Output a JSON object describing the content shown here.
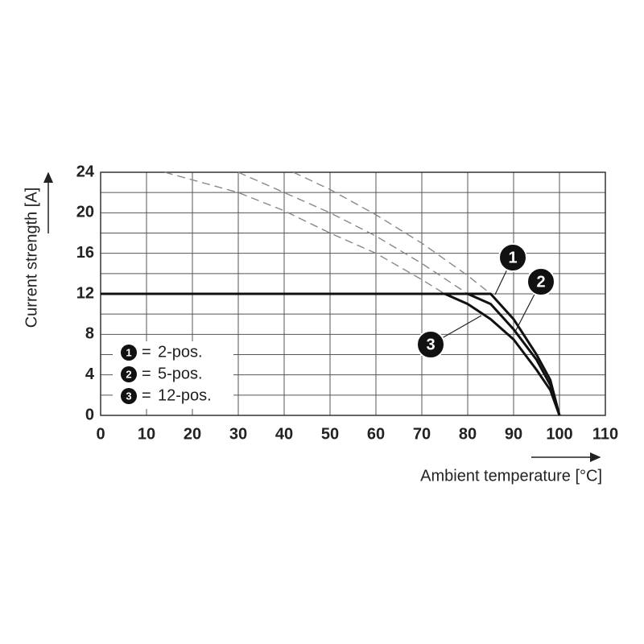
{
  "chart_data": {
    "type": "line",
    "y_label": "Current strength [A]",
    "x_label": "Ambient temperature [°C]",
    "xlim": [
      0,
      110
    ],
    "xticks": [
      0,
      10,
      20,
      30,
      40,
      50,
      60,
      70,
      80,
      90,
      100,
      110
    ],
    "ylim": [
      0,
      24
    ],
    "yticks": [
      0,
      4,
      8,
      12,
      16,
      20,
      24
    ],
    "y_minor_ticks": [
      2,
      6,
      10,
      14,
      18,
      22
    ],
    "grid": true,
    "legend_separator": "=",
    "x": [
      0,
      75,
      80,
      85,
      90,
      95,
      98,
      100
    ],
    "series": [
      {
        "name": "2-pos.",
        "marker": "1",
        "color": "#111111",
        "values": [
          12,
          12,
          12,
          12,
          9.5,
          6,
          3.5,
          0
        ]
      },
      {
        "name": "5-pos.",
        "marker": "2",
        "color": "#111111",
        "values": [
          12,
          12,
          12,
          11,
          8.5,
          5.5,
          3,
          0
        ]
      },
      {
        "name": "12-pos.",
        "marker": "3",
        "color": "#111111",
        "values": [
          12,
          12,
          11,
          9.5,
          7.5,
          4.5,
          2.5,
          0
        ]
      }
    ],
    "dashed_series": [
      {
        "color": "#888888",
        "x": [
          42,
          50,
          60,
          70,
          80,
          85
        ],
        "values": [
          24,
          22.3,
          19.8,
          17,
          13.8,
          12
        ]
      },
      {
        "color": "#888888",
        "x": [
          30,
          40,
          50,
          60,
          70,
          80
        ],
        "values": [
          24,
          22,
          20,
          17.7,
          15,
          12
        ]
      },
      {
        "color": "#888888",
        "x": [
          14,
          30,
          40,
          50,
          60,
          70,
          75
        ],
        "values": [
          24,
          22,
          20.2,
          18,
          16,
          13.4,
          12
        ]
      }
    ]
  }
}
